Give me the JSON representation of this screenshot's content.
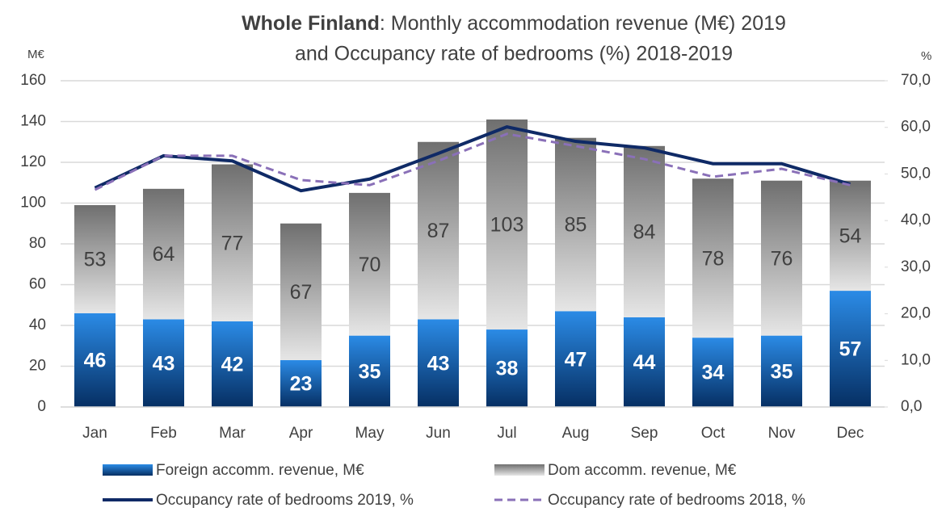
{
  "chart_data": {
    "type": "bar-line",
    "title": {
      "bold": "Whole Finland",
      "rest": ": Monthly accommodation revenue (M€) 2019",
      "line2": "and Occupancy rate of bedrooms (%) 2018-2019"
    },
    "y_label": "M€",
    "y2_label": "%",
    "categories": [
      "Jan",
      "Feb",
      "Mar",
      "Apr",
      "May",
      "Jun",
      "Jul",
      "Aug",
      "Sep",
      "Oct",
      "Nov",
      "Dec"
    ],
    "ylim": [
      0,
      160
    ],
    "yticks": [
      0,
      20,
      40,
      60,
      80,
      100,
      120,
      140,
      160
    ],
    "y2lim": [
      0,
      70
    ],
    "y2ticks": [
      {
        "value": 0,
        "label": "0,0"
      },
      {
        "value": 10,
        "label": "10,0"
      },
      {
        "value": 20,
        "label": "20,0"
      },
      {
        "value": 30,
        "label": "30,0"
      },
      {
        "value": 40,
        "label": "40,0"
      },
      {
        "value": 50,
        "label": "50,0"
      },
      {
        "value": 60,
        "label": "60,0"
      },
      {
        "value": 70,
        "label": "70,0"
      }
    ],
    "grid": true,
    "series": [
      {
        "name": "Foreign accomm. revenue, M€",
        "kind": "bar",
        "gradient": [
          "#2b8be6",
          "#062f63"
        ],
        "label_color": "#ffffff",
        "values": [
          46,
          43,
          42,
          23,
          35,
          43,
          38,
          47,
          44,
          34,
          35,
          57
        ]
      },
      {
        "name": "Dom accomm. revenue, M€",
        "kind": "bar",
        "gradient": [
          "#6f6f6f",
          "#e6e6e6"
        ],
        "label_color": "#404040",
        "values": [
          53,
          64,
          77,
          67,
          70,
          87,
          103,
          85,
          84,
          78,
          76,
          54
        ]
      },
      {
        "name": "Occupancy rate of bedrooms 2019, %",
        "kind": "line",
        "axis": "y2",
        "color": "#0f2a66",
        "dashed": false,
        "values": [
          47.0,
          53.9,
          52.8,
          46.4,
          48.9,
          54.4,
          60.1,
          57.0,
          55.6,
          52.2,
          52.2,
          47.8
        ]
      },
      {
        "name": "Occupancy rate of bedrooms 2018, %",
        "kind": "line",
        "axis": "y2",
        "color": "#8a70b8",
        "dashed": true,
        "values": [
          46.6,
          53.9,
          53.9,
          48.7,
          47.6,
          52.8,
          58.6,
          56.0,
          53.2,
          49.4,
          51.1,
          47.6
        ]
      }
    ]
  }
}
